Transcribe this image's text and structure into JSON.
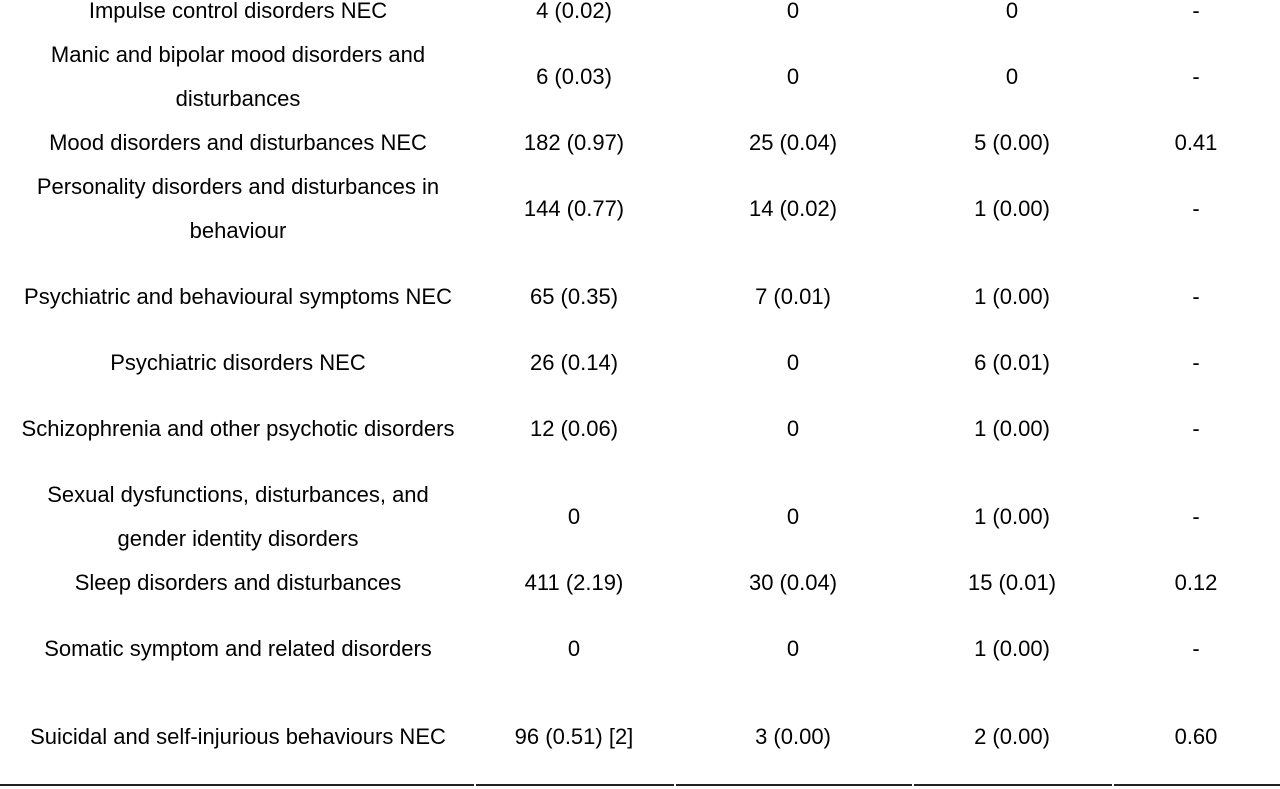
{
  "table": {
    "rows": [
      {
        "term": "Impulse control disorders NEC",
        "c1": "4 (0.02)",
        "c2": "0",
        "c3": "0",
        "c4": "-"
      },
      {
        "term": "Manic and bipolar mood disorders and disturbances",
        "c1": "6 (0.03)",
        "c2": "0",
        "c3": "0",
        "c4": "-"
      },
      {
        "term": "Mood disorders and disturbances NEC",
        "c1": "182 (0.97)",
        "c2": "25 (0.04)",
        "c3": "5 (0.00)",
        "c4": "0.41"
      },
      {
        "term": "Personality disorders and disturbances in behaviour",
        "c1": "144 (0.77)",
        "c2": "14 (0.02)",
        "c3": "1 (0.00)",
        "c4": "-"
      },
      {
        "term": "Psychiatric and behavioural symptoms NEC",
        "c1": "65 (0.35)",
        "c2": "7 (0.01)",
        "c3": "1 (0.00)",
        "c4": "-"
      },
      {
        "term": "Psychiatric disorders NEC",
        "c1": "26 (0.14)",
        "c2": "0",
        "c3": "6 (0.01)",
        "c4": "-"
      },
      {
        "term": "Schizophrenia and other psychotic disorders",
        "c1": "12 (0.06)",
        "c2": "0",
        "c3": "1 (0.00)",
        "c4": "-"
      },
      {
        "term": "Sexual dysfunctions, disturbances, and gender identity disorders",
        "c1": "0",
        "c2": "0",
        "c3": "1 (0.00)",
        "c4": "-"
      },
      {
        "term": "Sleep disorders and disturbances",
        "c1": "411 (2.19)",
        "c2": "30 (0.04)",
        "c3": "15 (0.01)",
        "c4": "0.12"
      },
      {
        "term": "Somatic symptom and related disorders",
        "c1": "0",
        "c2": "0",
        "c3": "1 (0.00)",
        "c4": "-"
      },
      {
        "term": "Suicidal and self-injurious behaviours NEC",
        "c1": "96 (0.51) [2]",
        "c2": "3 (0.00)",
        "c3": "2 (0.00)",
        "c4": "0.60"
      }
    ]
  }
}
